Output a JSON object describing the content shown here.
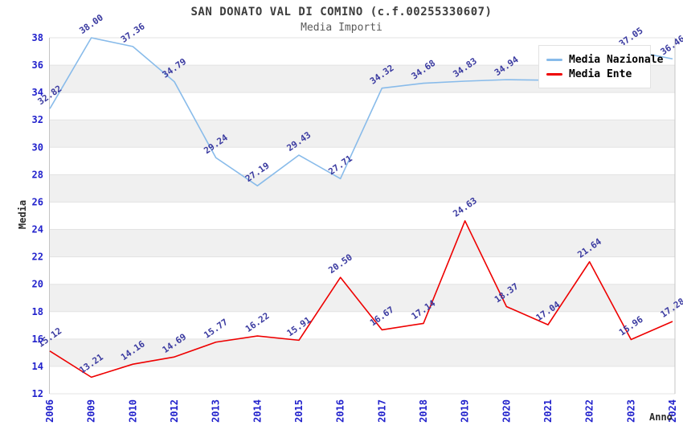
{
  "header": {
    "title": "SAN DONATO VAL DI COMINO (c.f.00255330607)",
    "subtitle": "Media Importi"
  },
  "chart_data": {
    "type": "line",
    "title": "SAN DONATO VAL DI COMINO (c.f.00255330607)",
    "subtitle": "Media Importi",
    "xlabel": "Anno",
    "ylabel": "Media",
    "ylim": [
      12,
      38
    ],
    "ytick_step": 2,
    "yticks": [
      "12",
      "14",
      "16",
      "18",
      "20",
      "22",
      "24",
      "26",
      "28",
      "30",
      "32",
      "34",
      "36",
      "38"
    ],
    "grid": true,
    "legend_position": "top-right",
    "categories": [
      "2006",
      "2009",
      "2010",
      "2012",
      "2013",
      "2014",
      "2015",
      "2016",
      "2017",
      "2018",
      "2019",
      "2020",
      "2021",
      "2022",
      "2023",
      "2024"
    ],
    "series": [
      {
        "name": "Media Nazionale",
        "color": "#88bbea",
        "values": [
          32.82,
          38.0,
          37.36,
          34.79,
          29.24,
          27.19,
          29.43,
          27.71,
          34.32,
          34.68,
          34.83,
          34.94,
          34.9,
          35.1,
          37.05,
          36.46
        ],
        "labels": [
          "32.82",
          "38.00",
          "37.36",
          "34.79",
          "29.24",
          "27.19",
          "29.43",
          "27.71",
          "34.32",
          "34.68",
          "34.83",
          "34.94",
          "",
          "",
          "37.05",
          "36.46"
        ]
      },
      {
        "name": "Media Ente",
        "color": "#ee0000",
        "values": [
          15.12,
          13.21,
          14.16,
          14.69,
          15.77,
          16.22,
          15.91,
          20.5,
          16.67,
          17.14,
          24.63,
          18.37,
          17.04,
          21.64,
          15.96,
          17.28
        ],
        "labels": [
          "15.12",
          "13.21",
          "14.16",
          "14.69",
          "15.77",
          "16.22",
          "15.91",
          "20.50",
          "16.67",
          "17.14",
          "24.63",
          "18.37",
          "17.04",
          "21.64",
          "15.96",
          "17.28"
        ]
      }
    ],
    "style": {
      "band_fill": "#f0f0f0",
      "gridline_color": "#e3e3e3",
      "border_color": "#c4c4c4",
      "tick_label_color": "#2222cc",
      "point_label_color": "#3a3aa0"
    }
  }
}
